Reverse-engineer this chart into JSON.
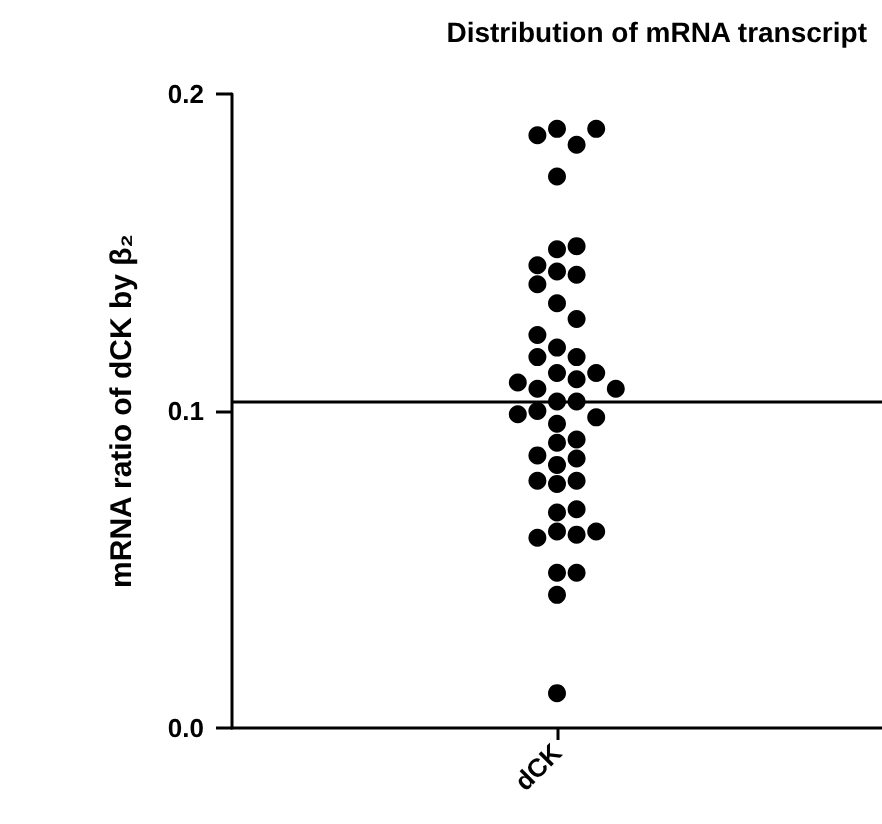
{
  "chart_data": {
    "type": "scatter",
    "title": "Distribution of mRNA transcript",
    "ylabel": "mRNA ratio of dCK by β₂",
    "categories": [
      "dCK"
    ],
    "series": [
      {
        "color": "#000000",
        "x": [
          "dCK",
          "dCK",
          "dCK",
          "dCK",
          "dCK",
          "dCK",
          "dCK",
          "dCK",
          "dCK",
          "dCK",
          "dCK",
          "dCK",
          "dCK",
          "dCK",
          "dCK",
          "dCK",
          "dCK",
          "dCK",
          "dCK",
          "dCK",
          "dCK",
          "dCK",
          "dCK",
          "dCK",
          "dCK",
          "dCK",
          "dCK",
          "dCK",
          "dCK",
          "dCK",
          "dCK",
          "dCK",
          "dCK",
          "dCK",
          "dCK",
          "dCK",
          "dCK",
          "dCK",
          "dCK",
          "dCK",
          "dCK",
          "dCK",
          "dCK",
          "dCK",
          "dCK",
          "dCK",
          "dCK"
        ],
        "values": [
          0.189,
          0.184,
          0.187,
          0.189,
          0.174,
          0.151,
          0.152,
          0.144,
          0.143,
          0.146,
          0.14,
          0.134,
          0.129,
          0.12,
          0.124,
          0.117,
          0.117,
          0.112,
          0.112,
          0.11,
          0.107,
          0.109,
          0.107,
          0.103,
          0.103,
          0.1,
          0.098,
          0.099,
          0.096,
          0.09,
          0.091,
          0.085,
          0.086,
          0.083,
          0.078,
          0.077,
          0.078,
          0.068,
          0.069,
          0.062,
          0.061,
          0.06,
          0.062,
          0.049,
          0.049,
          0.042,
          0.011
        ]
      }
    ],
    "ylim": [
      0,
      0.2
    ],
    "yticks": [
      {
        "value": 0,
        "label": "0.0"
      },
      0.1,
      0.2
    ],
    "ref_lines": [
      {
        "axis": "y",
        "value": 0.103,
        "color": "#000000"
      }
    ],
    "grid": false,
    "marker": "circle"
  }
}
